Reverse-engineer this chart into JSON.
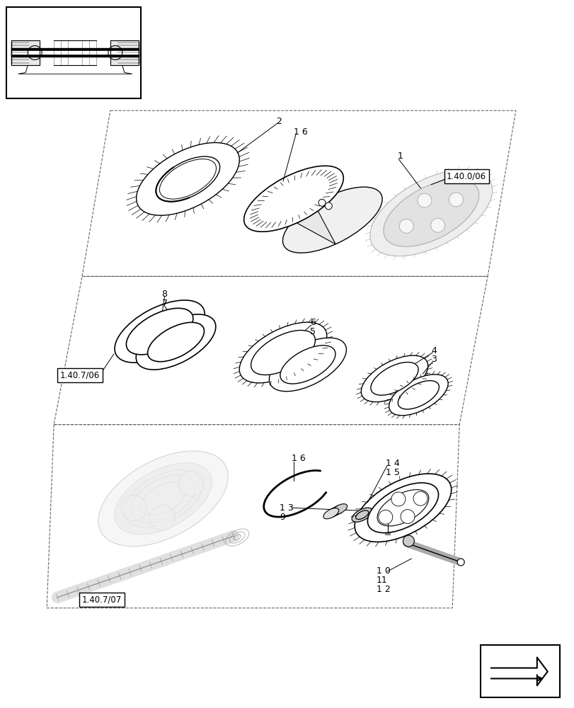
{
  "background_color": "#ffffff",
  "fig_width": 8.12,
  "fig_height": 10.0,
  "dpi": 100,
  "labels": {
    "ref_140006": "1.40.0/06",
    "ref_140706": "1.40.7/06",
    "ref_140707": "1.40.7/07"
  }
}
